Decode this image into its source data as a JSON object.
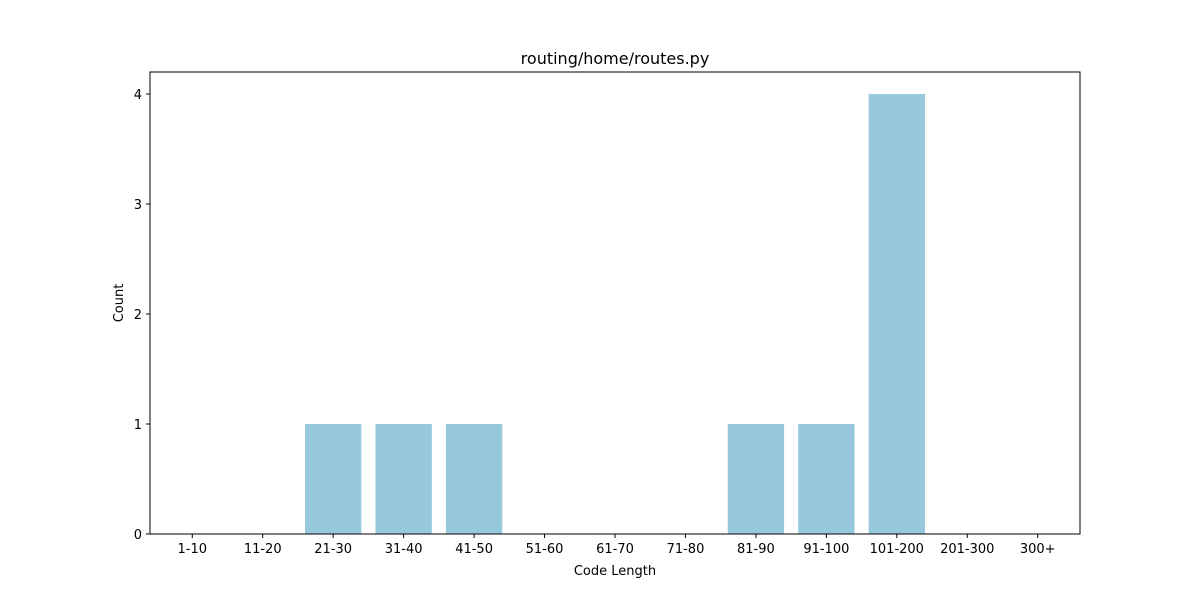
{
  "chart_data": {
    "type": "bar",
    "title": "routing/home/routes.py",
    "xlabel": "Code Length",
    "ylabel": "Count",
    "categories": [
      "1-10",
      "11-20",
      "21-30",
      "31-40",
      "41-50",
      "51-60",
      "61-70",
      "71-80",
      "81-90",
      "91-100",
      "101-200",
      "201-300",
      "300+"
    ],
    "values": [
      0,
      0,
      1,
      1,
      1,
      0,
      0,
      0,
      1,
      1,
      4,
      0,
      0
    ],
    "ylim": [
      0,
      4.2
    ],
    "yticks": [
      0,
      1,
      2,
      3,
      4
    ],
    "bar_color": "#96c9dc",
    "grid": false,
    "legend": "none"
  }
}
